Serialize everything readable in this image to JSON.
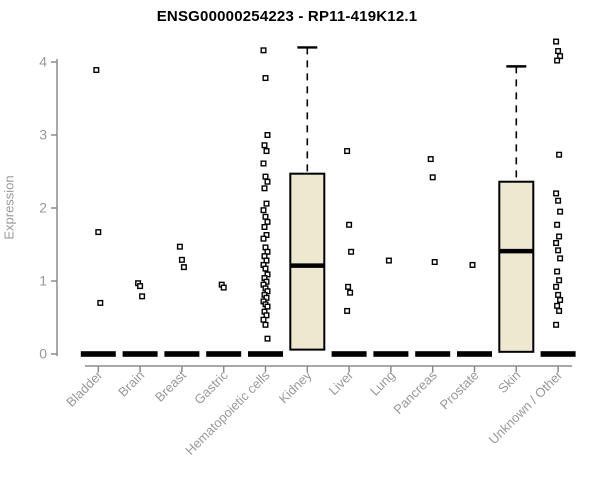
{
  "chart_data": {
    "type": "boxplot",
    "title": "ENSG00000254223 - RP11-419K12.1",
    "ylabel": "Expression",
    "xlabel": "",
    "ylim": [
      0,
      4.3
    ],
    "yticks": [
      0,
      1,
      2,
      3,
      4
    ],
    "grid": false,
    "legend": "none",
    "categories": [
      "Bladder",
      "Brain",
      "Breast",
      "Gastric",
      "Hematopoietic cells",
      "Kidney",
      "Liver",
      "Lung",
      "Pancreas",
      "Prostate",
      "Skin",
      "Unknown / Other"
    ],
    "series": [
      {
        "name": "Bladder",
        "median": 0,
        "points": [
          3.89,
          1.67,
          0.7
        ]
      },
      {
        "name": "Brain",
        "median": 0,
        "points": [
          0.97,
          0.93,
          0.79
        ]
      },
      {
        "name": "Breast",
        "median": 0,
        "points": [
          1.47,
          1.29,
          1.19
        ]
      },
      {
        "name": "Gastric",
        "median": 0,
        "points": [
          0.95,
          0.91
        ]
      },
      {
        "name": "Hematopoietic cells",
        "median": 0,
        "points": [
          4.16,
          3.78,
          3.0,
          2.86,
          2.78,
          2.61,
          2.43,
          2.36,
          2.27,
          2.06,
          1.97,
          1.88,
          1.81,
          1.74,
          1.63,
          1.58,
          1.46,
          1.4,
          1.34,
          1.28,
          1.22,
          1.17,
          1.09,
          1.04,
          0.99,
          0.95,
          0.9,
          0.86,
          0.81,
          0.77,
          0.72,
          0.68,
          0.65,
          0.58,
          0.53,
          0.47,
          0.4,
          0.21
        ]
      },
      {
        "name": "Kidney",
        "box": {
          "q1": 0.06,
          "median": 1.21,
          "q3": 2.47,
          "whisker_high": 4.2
        },
        "points": []
      },
      {
        "name": "Liver",
        "median": 0,
        "points": [
          2.78,
          1.77,
          1.4,
          0.92,
          0.84,
          0.59
        ]
      },
      {
        "name": "Lung",
        "median": 0,
        "points": [
          1.28
        ]
      },
      {
        "name": "Pancreas",
        "median": 0,
        "points": [
          2.67,
          2.42,
          1.26
        ]
      },
      {
        "name": "Prostate",
        "median": 0,
        "points": [
          1.22
        ]
      },
      {
        "name": "Skin",
        "box": {
          "q1": 0.03,
          "median": 1.41,
          "q3": 2.36,
          "whisker_high": 3.94
        },
        "points": []
      },
      {
        "name": "Unknown / Other",
        "median": 0,
        "points": [
          4.28,
          4.15,
          4.08,
          4.02,
          2.73,
          2.2,
          2.1,
          1.95,
          1.77,
          1.61,
          1.52,
          1.42,
          1.31,
          1.13,
          1.01,
          0.92,
          0.81,
          0.74,
          0.66,
          0.59,
          0.4
        ]
      }
    ],
    "colors": {
      "box_fill": "#ede8cf",
      "box_stroke": "#000000",
      "median": "#000000",
      "point_stroke": "#000000",
      "point_fill": "#ffffff",
      "axis": "#8c8c8c",
      "tick_label": "#999999",
      "title": "#000000",
      "background": "#ffffff"
    }
  }
}
